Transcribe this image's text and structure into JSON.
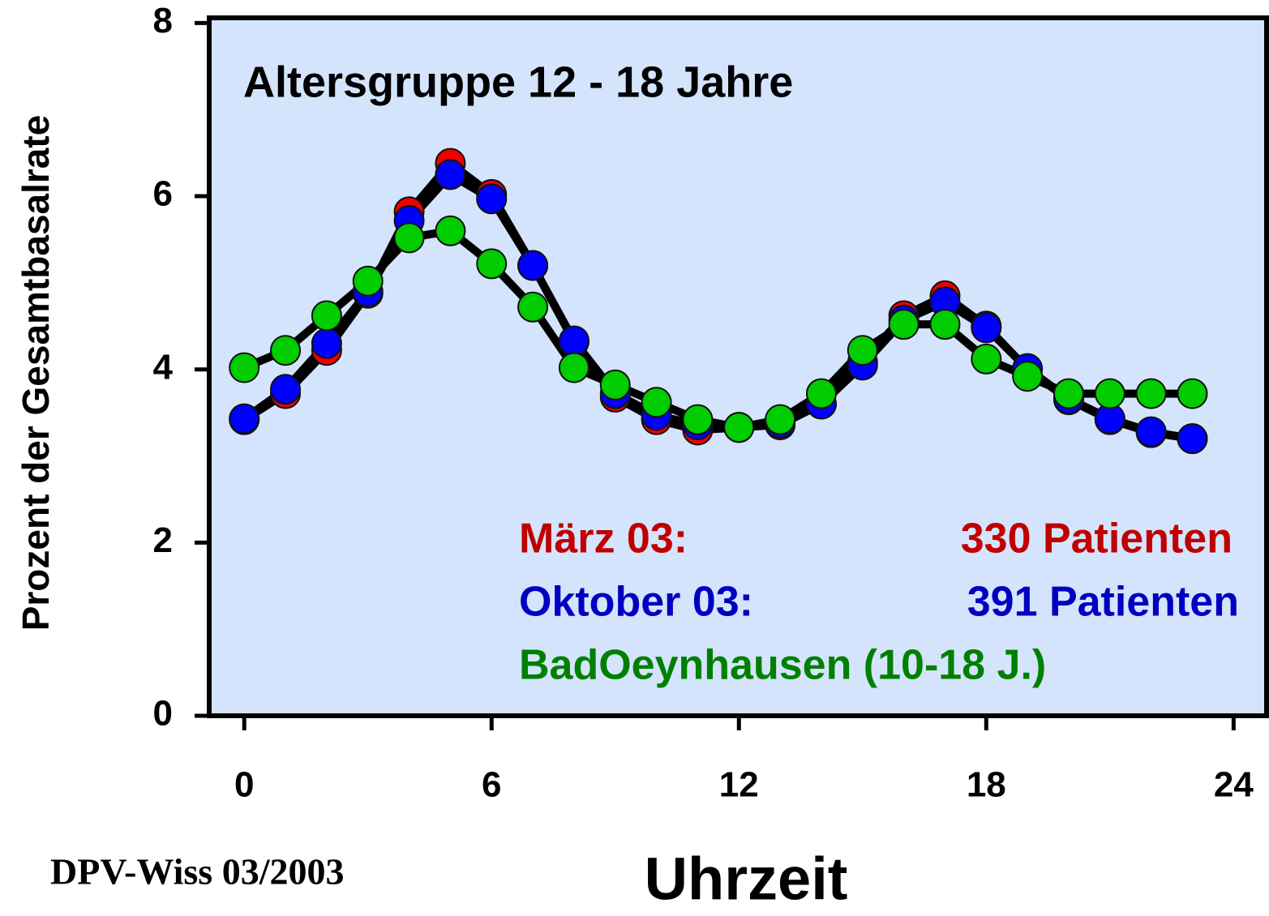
{
  "chart_data": {
    "type": "line",
    "title": "Altersgruppe 12 - 18  Jahre",
    "x_label": "Uhrzeit",
    "y_label": "Prozent der Gesamtbasalrate",
    "source": "DPV-Wiss 03/2003",
    "x": [
      0,
      1,
      2,
      3,
      4,
      5,
      6,
      7,
      8,
      9,
      10,
      11,
      12,
      13,
      14,
      15,
      16,
      17,
      18,
      19,
      20,
      21,
      22,
      23
    ],
    "series": [
      {
        "name": "März 03:",
        "count": "330 Patienten",
        "color": "#ee0000",
        "text_color": "#c00000",
        "values": [
          3.42,
          3.72,
          4.22,
          4.88,
          5.82,
          6.38,
          6.02,
          5.2,
          4.32,
          3.68,
          3.42,
          3.3,
          3.33,
          3.36,
          3.6,
          4.08,
          4.62,
          4.85,
          4.5,
          4.0,
          3.65,
          3.42,
          3.27,
          3.2
        ]
      },
      {
        "name": "Oktober 03:",
        "count": "391 Patienten",
        "color": "#0000ff",
        "text_color": "#0000c0",
        "values": [
          3.43,
          3.77,
          4.3,
          4.9,
          5.72,
          6.25,
          5.97,
          5.2,
          4.33,
          3.72,
          3.47,
          3.36,
          3.33,
          3.38,
          3.6,
          4.05,
          4.57,
          4.78,
          4.48,
          4.01,
          3.66,
          3.43,
          3.28,
          3.2
        ]
      },
      {
        "name": "BadOeynhausen (10-18 J.)",
        "color": "#00cc00",
        "text_color": "#008000",
        "values": [
          4.02,
          4.22,
          4.62,
          5.02,
          5.52,
          5.6,
          5.22,
          4.72,
          4.02,
          3.82,
          3.62,
          3.42,
          3.33,
          3.42,
          3.72,
          4.22,
          4.52,
          4.52,
          4.12,
          3.92,
          3.72,
          3.72,
          3.72,
          3.72
        ]
      }
    ],
    "xlim": [
      -0.85,
      24.8
    ],
    "xticks": [
      0,
      6,
      12,
      18,
      24
    ],
    "ylim": [
      0,
      8.06
    ],
    "yticks": [
      0,
      2,
      4,
      6,
      8
    ],
    "background": "#d4e4fc"
  }
}
